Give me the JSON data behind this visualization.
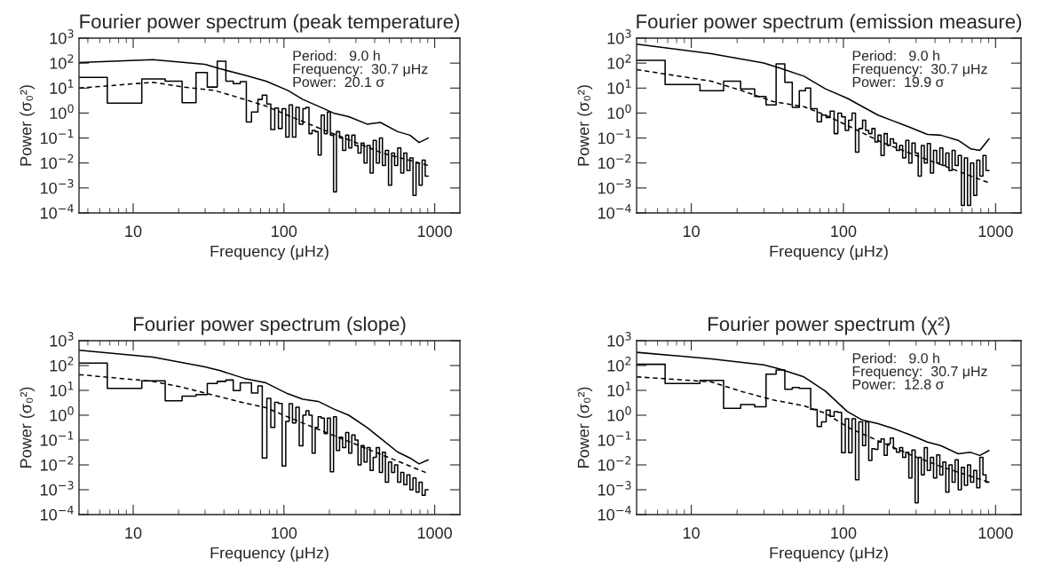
{
  "chart_data": [
    {
      "type": "step",
      "title": "Fourier power spectrum (peak temperature)",
      "xlabel": "Frequency (μHz)",
      "ylabel": "Power (σ₀²)",
      "log": "xy",
      "grid": false,
      "xlim": [
        4.37,
        1470
      ],
      "ylim": [
        0.0001,
        1000
      ],
      "xticks": [
        10,
        100,
        1000
      ],
      "yticks": [
        {
          "value": 1000,
          "label": "10$^{3}$"
        },
        {
          "value": 100,
          "label": "10$^{2}$"
        },
        {
          "value": 10,
          "label": "10$^{1}$"
        },
        {
          "value": 1,
          "label": "10$^{0}$"
        },
        {
          "value": 0.1,
          "label": "10$^{−1}$"
        },
        {
          "value": 0.01,
          "label": "10$^{−2}$"
        },
        {
          "value": 0.001,
          "label": "10$^{−3}$"
        },
        {
          "value": 0.0001,
          "label": "10$^{−4}$"
        }
      ],
      "annotations": [
        "Period:   9.0 h",
        "Frequency:  30.7 μHz",
        "Power:  20.1 σ"
      ],
      "series": [
        {
          "color": "#000000",
          "x": [
            4.37,
            6.73,
            11.4,
            16.3,
            21.1,
            26.1,
            31.0,
            36.1,
            41.2,
            46.1,
            51.3,
            56.3,
            60.9,
            67.2,
            71.8,
            77.0,
            81.8,
            86.9,
            91.9,
            97.2,
            102.8,
            108.2,
            113.9,
            120.0,
            126.3,
            133.6,
            140.0,
            146.6,
            153.8,
            161.1,
            168.7,
            176.6,
            185.3,
            194.1,
            203.2,
            213.3,
            223,
            234,
            245,
            257,
            269,
            282,
            296,
            310,
            325,
            340,
            356,
            373,
            391,
            410,
            430,
            450,
            471,
            494,
            518,
            542,
            568,
            596,
            624,
            654,
            685,
            718,
            752,
            788,
            826,
            865,
            906
          ],
          "values": [
            27,
            2.5,
            23,
            19,
            2.6,
            42,
            11,
            120,
            19,
            15,
            18,
            0.44,
            1.1,
            3.5,
            5.2,
            2.3,
            0.22,
            1.6,
            0.24,
            1.5,
            0.11,
            2.1,
            0.11,
            1.7,
            0.36,
            1.5,
            1.7,
            0.15,
            0.2,
            0.18,
            0.021,
            0.83,
            0.15,
            1.1,
            0.13,
            0.0007,
            0.18,
            0.1,
            0.032,
            0.13,
            0.04,
            0.13,
            0.05,
            0.025,
            0.063,
            0.01,
            0.05,
            0.004,
            0.08,
            0.01,
            0.1,
            0.008,
            0.032,
            0.0013,
            0.025,
            0.008,
            0.04,
            0.004,
            0.025,
            0.005,
            0.016,
            0.0005,
            0.01,
            0.0013,
            0.013,
            0.003,
            0.003
          ]
        },
        {
          "type": "line",
          "color": "#000000",
          "line_style": "solid",
          "x": [
            4.37,
            13.5,
            29.9,
            37.8,
            55.0,
            76.1,
            106,
            133.6,
            168.7,
            213,
            269,
            356,
            436,
            568,
            685,
            788,
            906
          ],
          "values": [
            105,
            138,
            89,
            59,
            33,
            19,
            8.1,
            3.5,
            1.9,
            1.0,
            0.72,
            0.36,
            0.42,
            0.18,
            0.13,
            0.066,
            0.1
          ]
        },
        {
          "type": "line",
          "color": "#000000",
          "line_style": "dashed",
          "x": [
            4.37,
            13.5,
            21.6,
            34.5,
            55,
            76.1,
            111,
            177,
            282,
            450,
            906
          ],
          "values": [
            10,
            17,
            11,
            8.1,
            3.5,
            1.9,
            0.72,
            0.23,
            0.076,
            0.025,
            0.008
          ]
        }
      ]
    },
    {
      "type": "step",
      "title": "Fourier power spectrum (emission measure)",
      "xlabel": "Frequency (μHz)",
      "ylabel": "Power (σ₀²)",
      "log": "xy",
      "grid": false,
      "xlim": [
        4.37,
        1470
      ],
      "ylim": [
        0.0001,
        1000
      ],
      "xticks": [
        10,
        100,
        1000
      ],
      "yticks": [
        {
          "value": 1000,
          "label": "10$^{3}$"
        },
        {
          "value": 100,
          "label": "10$^{2}$"
        },
        {
          "value": 10,
          "label": "10$^{1}$"
        },
        {
          "value": 1,
          "label": "10$^{0}$"
        },
        {
          "value": 0.1,
          "label": "10$^{−1}$"
        },
        {
          "value": 0.01,
          "label": "10$^{−2}$"
        },
        {
          "value": 0.001,
          "label": "10$^{−3}$"
        },
        {
          "value": 0.0001,
          "label": "10$^{−4}$"
        }
      ],
      "annotations": [
        "Period:   9.0 h",
        "Frequency:  30.7 μHz",
        "Power:  19.9 σ"
      ],
      "series": [
        {
          "color": "#000000",
          "x": [
            4.37,
            6.73,
            11.4,
            16.3,
            21.1,
            26.1,
            31.0,
            36.1,
            41.2,
            46.1,
            51.3,
            56.3,
            60.9,
            67.2,
            71.8,
            77.0,
            81.8,
            86.9,
            91.9,
            97.2,
            102.8,
            108.2,
            113.9,
            120.0,
            126.3,
            133.6,
            140.0,
            146.6,
            153.8,
            161.1,
            168.7,
            176.6,
            185.3,
            194.1,
            203.2,
            213.3,
            223,
            234,
            245,
            257,
            269,
            282,
            296,
            310,
            325,
            340,
            356,
            373,
            391,
            410,
            430,
            450,
            471,
            494,
            518,
            542,
            568,
            596,
            624,
            654,
            685,
            718,
            752,
            788,
            826,
            865,
            906
          ],
          "values": [
            130,
            14,
            7.8,
            19,
            9.3,
            4.6,
            2.1,
            93,
            17,
            1.7,
            7.8,
            10,
            1.5,
            0.45,
            0.83,
            0.66,
            1.2,
            0.15,
            1.0,
            0.71,
            0.2,
            0.52,
            1.0,
            0.027,
            0.24,
            0.52,
            0.2,
            0.15,
            0.24,
            0.069,
            0.13,
            0.02,
            0.15,
            0.05,
            0.093,
            0.063,
            0.032,
            0.05,
            0.016,
            0.08,
            0.01,
            0.063,
            0.025,
            0.003,
            0.05,
            0.01,
            0.06,
            0.004,
            0.032,
            0.01,
            0.04,
            0.008,
            0.025,
            0.005,
            0.032,
            0.008,
            0.02,
            0.0002,
            0.016,
            0.0002,
            0.01,
            0.0005,
            0.013,
            0.003,
            0.02,
            0.005,
            0.005
          ]
        },
        {
          "type": "line",
          "color": "#000000",
          "line_style": "solid",
          "x": [
            4.37,
            13.5,
            29.9,
            37.8,
            55.0,
            76.1,
            106,
            133.6,
            168.7,
            213,
            269,
            356,
            436,
            568,
            685,
            788,
            906
          ],
          "values": [
            575,
            240,
            102,
            65,
            30,
            9.3,
            3.9,
            1.8,
            0.83,
            0.48,
            0.28,
            0.14,
            0.13,
            0.081,
            0.037,
            0.032,
            0.093
          ]
        },
        {
          "type": "line",
          "color": "#000000",
          "line_style": "dashed",
          "x": [
            4.37,
            13.5,
            21.6,
            34.5,
            55,
            76.1,
            111,
            177,
            282,
            450,
            906
          ],
          "values": [
            55,
            19,
            7.8,
            2.9,
            1.8,
            0.83,
            0.28,
            0.069,
            0.023,
            0.008,
            0.0016
          ]
        }
      ]
    },
    {
      "type": "step",
      "title": "Fourier power spectrum (slope)",
      "xlabel": "Frequency (μHz)",
      "ylabel": "Power (σ₀²)",
      "log": "xy",
      "grid": false,
      "xlim": [
        4.37,
        1470
      ],
      "ylim": [
        0.0001,
        1000
      ],
      "xticks": [
        10,
        100,
        1000
      ],
      "yticks": [
        {
          "value": 1000,
          "label": "10$^{3}$"
        },
        {
          "value": 100,
          "label": "10$^{2}$"
        },
        {
          "value": 10,
          "label": "10$^{1}$"
        },
        {
          "value": 1,
          "label": "10$^{0}$"
        },
        {
          "value": 0.1,
          "label": "10$^{−1}$"
        },
        {
          "value": 0.01,
          "label": "10$^{−2}$"
        },
        {
          "value": 0.001,
          "label": "10$^{−3}$"
        },
        {
          "value": 0.0001,
          "label": "10$^{−4}$"
        }
      ],
      "series": [
        {
          "color": "#000000",
          "x": [
            4.37,
            6.73,
            11.4,
            16.3,
            21.1,
            26.1,
            31.0,
            36.1,
            41.2,
            46.1,
            51.3,
            56.3,
            60.9,
            67.2,
            71.8,
            77.0,
            81.8,
            86.9,
            91.9,
            97.2,
            102.8,
            108.2,
            113.9,
            120.0,
            126.3,
            133.6,
            140.0,
            146.6,
            153.8,
            161.1,
            168.7,
            176.6,
            185.3,
            194.1,
            203.2,
            213.3,
            223,
            234,
            245,
            257,
            269,
            282,
            296,
            310,
            325,
            340,
            356,
            373,
            391,
            410,
            430,
            450,
            471,
            494,
            518,
            542,
            568,
            596,
            624,
            654,
            685,
            718,
            752,
            788,
            826,
            865,
            906
          ],
          "values": [
            126,
            12,
            24,
            3.8,
            5.9,
            6.8,
            19,
            23,
            26,
            9.8,
            20,
            20,
            7.8,
            15,
            0.019,
            4.8,
            0.32,
            3.3,
            3.0,
            0.009,
            0.56,
            2.9,
            0.49,
            2.1,
            0.059,
            1.0,
            1.5,
            1.0,
            0.03,
            0.32,
            0.87,
            0.76,
            0.18,
            0.76,
            0.0053,
            0.87,
            0.038,
            0.13,
            0.05,
            0.2,
            0.03,
            0.16,
            0.1,
            0.01,
            0.06,
            0.013,
            0.05,
            0.006,
            0.02,
            0.05,
            0.005,
            0.032,
            0.002,
            0.013,
            0.005,
            0.01,
            0.002,
            0.005,
            0.0016,
            0.004,
            0.001,
            0.003,
            0.0008,
            0.002,
            0.0006,
            0.001,
            0.001
          ]
        },
        {
          "type": "line",
          "color": "#000000",
          "line_style": "solid",
          "x": [
            4.37,
            13.5,
            29.9,
            37.8,
            55.0,
            76.1,
            106,
            133.6,
            168.7,
            213,
            269,
            356,
            436,
            568,
            685,
            788,
            906
          ],
          "values": [
            415,
            220,
            89,
            62,
            30,
            20,
            7.3,
            4.4,
            3.6,
            1.8,
            1.0,
            0.32,
            0.12,
            0.033,
            0.019,
            0.011,
            0.016
          ]
        },
        {
          "type": "line",
          "color": "#000000",
          "line_style": "dashed",
          "x": [
            4.37,
            13.5,
            21.6,
            34.5,
            55,
            76.1,
            111,
            177,
            282,
            450,
            906
          ],
          "values": [
            43,
            23,
            13,
            6.3,
            3.1,
            2.0,
            0.76,
            0.24,
            0.078,
            0.025,
            0.0045
          ]
        }
      ]
    },
    {
      "type": "step",
      "title": "Fourier power spectrum (χ²)",
      "xlabel": "Frequency (μHz)",
      "ylabel": "Power (σ₀²)",
      "log": "xy",
      "grid": false,
      "xlim": [
        4.37,
        1470
      ],
      "ylim": [
        0.0001,
        1000
      ],
      "xticks": [
        10,
        100,
        1000
      ],
      "yticks": [
        {
          "value": 1000,
          "label": "10$^{3}$"
        },
        {
          "value": 100,
          "label": "10$^{2}$"
        },
        {
          "value": 10,
          "label": "10$^{1}$"
        },
        {
          "value": 1,
          "label": "10$^{0}$"
        },
        {
          "value": 0.1,
          "label": "10$^{−1}$"
        },
        {
          "value": 0.01,
          "label": "10$^{−2}$"
        },
        {
          "value": 0.001,
          "label": "10$^{−3}$"
        },
        {
          "value": 0.0001,
          "label": "10$^{−4}$"
        }
      ],
      "annotations": [
        "Period:   9.0 h",
        "Frequency:  30.7 μHz",
        "Power:  12.8 σ"
      ],
      "series": [
        {
          "color": "#000000",
          "x": [
            4.37,
            6.73,
            11.4,
            16.3,
            21.1,
            26.1,
            31.0,
            36.1,
            41.2,
            46.1,
            51.3,
            56.3,
            60.9,
            67.2,
            71.8,
            77.0,
            81.8,
            86.9,
            91.9,
            97.2,
            102.8,
            108.2,
            113.9,
            120.0,
            126.3,
            133.6,
            140.0,
            146.6,
            153.8,
            161.1,
            168.7,
            176.6,
            185.3,
            194.1,
            203.2,
            213.3,
            223,
            234,
            245,
            257,
            269,
            282,
            296,
            310,
            325,
            340,
            356,
            373,
            391,
            410,
            430,
            450,
            471,
            494,
            518,
            542,
            568,
            596,
            624,
            654,
            685,
            718,
            752,
            788,
            826,
            865,
            906
          ],
          "values": [
            112,
            19,
            25,
            1.9,
            2.7,
            2.2,
            45,
            66,
            11,
            13,
            12,
            12,
            1.7,
            0.35,
            0.54,
            1.6,
            0.91,
            1.4,
            1.3,
            0.031,
            0.72,
            0.031,
            0.72,
            0.0025,
            0.54,
            0.06,
            0.54,
            0.015,
            0.045,
            0.042,
            0.083,
            0.11,
            0.024,
            0.071,
            0.12,
            0.045,
            0.032,
            0.05,
            0.02,
            0.032,
            0.003,
            0.04,
            0.0003,
            0.02,
            0.004,
            0.05,
            0.006,
            0.02,
            0.003,
            0.025,
            0.004,
            0.013,
            0.0008,
            0.01,
            0.002,
            0.016,
            0.001,
            0.008,
            0.0015,
            0.01,
            0.002,
            0.006,
            0.0012,
            0.02,
            0.004,
            0.002,
            0.002
          ]
        },
        {
          "type": "line",
          "color": "#000000",
          "line_style": "solid",
          "x": [
            4.37,
            13.5,
            29.9,
            37.8,
            55.0,
            76.1,
            106,
            133.6,
            168.7,
            213,
            269,
            356,
            436,
            568,
            685,
            788,
            906
          ],
          "values": [
            340,
            186,
            107,
            73,
            35,
            9.3,
            1.4,
            0.63,
            0.46,
            0.29,
            0.17,
            0.083,
            0.06,
            0.028,
            0.032,
            0.024,
            0.038
          ]
        },
        {
          "type": "line",
          "color": "#000000",
          "line_style": "dashed",
          "x": [
            4.37,
            13.5,
            21.6,
            34.5,
            55,
            76.1,
            111,
            177,
            282,
            450,
            906
          ],
          "values": [
            35,
            22,
            8.9,
            4.1,
            2.4,
            1.2,
            0.29,
            0.083,
            0.024,
            0.0081,
            0.002
          ]
        }
      ]
    }
  ]
}
